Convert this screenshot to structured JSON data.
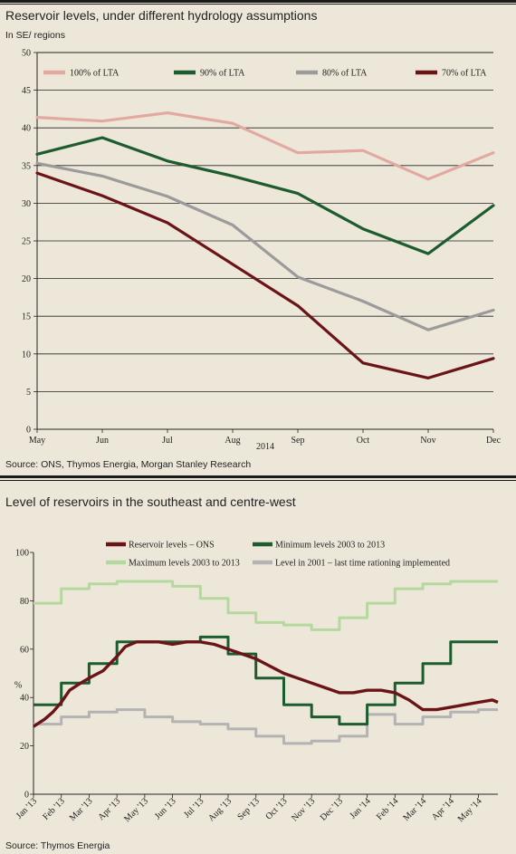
{
  "chart_data": [
    {
      "type": "line",
      "title": "Reservoir levels, under different hydrology assumptions",
      "subtitle": "In SE/ regions",
      "source": "Source: ONS, Thymos Energia, Morgan Stanley Research",
      "categories": [
        "May",
        "Jun",
        "Jul",
        "Aug",
        "Sep",
        "Oct",
        "Nov",
        "Dec"
      ],
      "xlabel": "2014",
      "ylim": [
        0,
        50
      ],
      "yticks": [
        0,
        5,
        10,
        15,
        20,
        25,
        30,
        35,
        40,
        45,
        50
      ],
      "grid": true,
      "legend_position": "top",
      "series": [
        {
          "name": "100% of LTA",
          "color": "#e2a9a1",
          "values": [
            41.4,
            40.9,
            42.0,
            40.6,
            36.7,
            37.0,
            33.2,
            36.7
          ]
        },
        {
          "name": "90% of LTA",
          "color": "#1d5c2f",
          "values": [
            36.5,
            38.7,
            35.6,
            33.6,
            31.3,
            26.6,
            23.3,
            29.7
          ]
        },
        {
          "name": "80% of LTA",
          "color": "#9b9b9b",
          "values": [
            35.3,
            33.6,
            30.9,
            27.1,
            20.2,
            17.0,
            13.2,
            15.8
          ]
        },
        {
          "name": "70% of LTA",
          "color": "#6b1418",
          "values": [
            34.0,
            31.0,
            27.4,
            21.9,
            16.4,
            8.8,
            6.8,
            9.4
          ]
        }
      ]
    },
    {
      "type": "line",
      "title": "Level of reservoirs in the southeast and centre-west",
      "ylabel": "%",
      "source": "Source: Thymos Energia",
      "categories": [
        "Jan '13",
        "Feb '13",
        "Mar '13",
        "Apr '13",
        "May '13",
        "Jun '13",
        "Jul '13",
        "Aug '13",
        "Sep '13",
        "Oct '13",
        "Nov '13",
        "Dec '13",
        "Jan '14",
        "Feb '14",
        "Mar '14",
        "Apr '14",
        "May '14"
      ],
      "ylim": [
        0,
        100
      ],
      "yticks": [
        0,
        20,
        40,
        60,
        80,
        100
      ],
      "grid": false,
      "legend_position": "top",
      "series": [
        {
          "name": "Reservoir levels – ONS",
          "color": "#6b1418",
          "style": "smooth",
          "x": [
            0,
            0.4,
            0.7,
            1.0,
            1.3,
            1.7,
            2.0,
            2.5,
            3.0,
            3.3,
            3.7,
            4.0,
            4.5,
            5.0,
            5.5,
            6.0,
            6.5,
            7.0,
            7.5,
            8.0,
            8.5,
            9.0,
            9.5,
            10.0,
            10.5,
            11.0,
            11.5,
            12.0,
            12.5,
            13.0,
            13.5,
            14.0,
            14.5,
            15.0,
            15.5,
            16.0,
            16.5,
            16.7
          ],
          "values": [
            28,
            31,
            34,
            38,
            43,
            46,
            48,
            51,
            57,
            61,
            63,
            63,
            63,
            62,
            63,
            63,
            62,
            60,
            58,
            56,
            53,
            50,
            48,
            46,
            44,
            42,
            42,
            43,
            43,
            42,
            39,
            35,
            35,
            36,
            37,
            38,
            39,
            38
          ]
        },
        {
          "name": "Minimum levels 2003 to 2013",
          "color": "#1d5c2f",
          "style": "step",
          "x": [
            0,
            1,
            2,
            3,
            4,
            5,
            6,
            7,
            8,
            9,
            10,
            11,
            12,
            13,
            14,
            15,
            16,
            16.7
          ],
          "values": [
            37,
            46,
            54,
            63,
            63,
            63,
            65,
            58,
            48,
            37,
            32,
            29,
            37,
            46,
            54,
            63,
            63,
            63
          ]
        },
        {
          "name": "Maximum levels 2003 to 2013",
          "color": "#b5d89e",
          "style": "step",
          "x": [
            0,
            1,
            2,
            3,
            4,
            5,
            6,
            7,
            8,
            9,
            10,
            11,
            12,
            13,
            14,
            15,
            16,
            16.7
          ],
          "values": [
            79,
            85,
            87,
            88,
            88,
            86,
            81,
            75,
            71,
            70,
            68,
            73,
            79,
            85,
            87,
            88,
            88,
            88
          ]
        },
        {
          "name": "Level in 2001 – last time rationing implemented",
          "color": "#b3b3b3",
          "style": "step",
          "x": [
            0,
            1,
            2,
            3,
            4,
            5,
            6,
            7,
            8,
            9,
            10,
            11,
            12,
            13,
            14,
            15,
            16,
            16.7
          ],
          "values": [
            29,
            32,
            34,
            35,
            32,
            30,
            29,
            27,
            24,
            21,
            22,
            24,
            33,
            29,
            32,
            34,
            35,
            35
          ]
        }
      ]
    }
  ]
}
